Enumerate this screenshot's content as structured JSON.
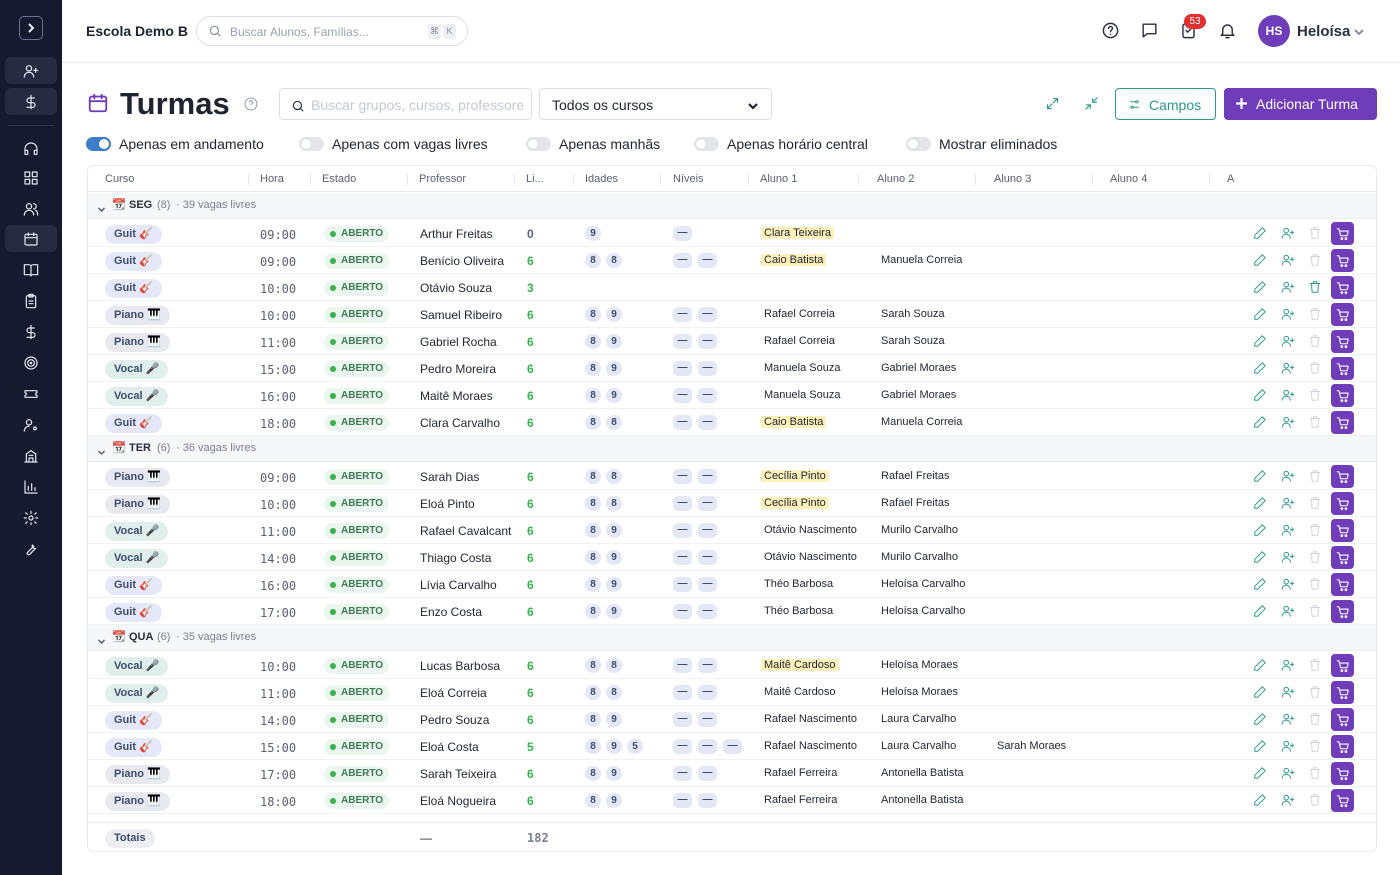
{
  "app": {
    "school": "Escola Demo B",
    "search_placeholder": "Buscar Alunos, Famílias...",
    "kbd1": "⌘",
    "kbd2": "K",
    "notif_count": "53",
    "user_initials": "HS",
    "user_name": "Heloísa"
  },
  "colors": {
    "brand": "#6f3dba",
    "accent": "#2b9a86",
    "sidebar": "#161a2e",
    "open": "#37b24d"
  },
  "page": {
    "title": "Turmas",
    "search_placeholder": "Buscar grupos, cursos, professores...",
    "course_filter": "Todos os cursos",
    "campos_label": "Campos",
    "add_label": "Adicionar Turma"
  },
  "toggles": [
    {
      "label": "Apenas em andamento",
      "on": true
    },
    {
      "label": "Apenas com vagas livres",
      "on": false
    },
    {
      "label": "Apenas manhãs",
      "on": false
    },
    {
      "label": "Apenas horário central",
      "on": false
    },
    {
      "label": "Mostrar eliminados",
      "on": false
    }
  ],
  "columns": [
    "Curso",
    "Hora",
    "Estado",
    "Professor",
    "Li...",
    "Idades",
    "Níveis",
    "Aluno 1",
    "Aluno 2",
    "Aluno 3",
    "Aluno 4",
    "A"
  ],
  "groups": [
    {
      "day": "SEG",
      "count": "(8)",
      "info": "· 39 vagas livres",
      "rows": [
        {
          "course": "Guit 🎸",
          "type": "guit",
          "hora": "09:00",
          "estado": "ABERTO",
          "prof": "Arthur Freitas",
          "livres": "0",
          "idades": [
            "9"
          ],
          "niveis": 1,
          "a1": "Clara Teixeira",
          "a1hl": true,
          "a2": "",
          "a3": "",
          "trash": false
        },
        {
          "course": "Guit 🎸",
          "type": "guit",
          "hora": "09:00",
          "estado": "ABERTO",
          "prof": "Benício Oliveira",
          "livres": "6",
          "idades": [
            "8",
            "8"
          ],
          "niveis": 2,
          "a1": "Caio Batista",
          "a1hl": true,
          "a2": "Manuela Correia",
          "a3": "",
          "trash": false
        },
        {
          "course": "Guit 🎸",
          "type": "guit",
          "hora": "10:00",
          "estado": "ABERTO",
          "prof": "Otávio Souza",
          "livres": "3",
          "idades": [],
          "niveis": 0,
          "a1": "",
          "a1hl": false,
          "a2": "",
          "a3": "",
          "trash": true
        },
        {
          "course": "Piano 🎹",
          "type": "piano",
          "hora": "10:00",
          "estado": "ABERTO",
          "prof": "Samuel Ribeiro",
          "livres": "6",
          "idades": [
            "8",
            "9"
          ],
          "niveis": 2,
          "a1": "Rafael Correia",
          "a1hl": false,
          "a2": "Sarah Souza",
          "a3": "",
          "trash": false
        },
        {
          "course": "Piano 🎹",
          "type": "piano",
          "hora": "11:00",
          "estado": "ABERTO",
          "prof": "Gabriel Rocha",
          "livres": "6",
          "idades": [
            "8",
            "9"
          ],
          "niveis": 2,
          "a1": "Rafael Correia",
          "a1hl": false,
          "a2": "Sarah Souza",
          "a3": "",
          "trash": false
        },
        {
          "course": "Vocal 🎤",
          "type": "vocal",
          "hora": "15:00",
          "estado": "ABERTO",
          "prof": "Pedro Moreira",
          "livres": "6",
          "idades": [
            "8",
            "9"
          ],
          "niveis": 2,
          "a1": "Manuela Souza",
          "a1hl": false,
          "a2": "Gabriel Moraes",
          "a3": "",
          "trash": false
        },
        {
          "course": "Vocal 🎤",
          "type": "vocal",
          "hora": "16:00",
          "estado": "ABERTO",
          "prof": "Maitê Moraes",
          "livres": "6",
          "idades": [
            "8",
            "9"
          ],
          "niveis": 2,
          "a1": "Manuela Souza",
          "a1hl": false,
          "a2": "Gabriel Moraes",
          "a3": "",
          "trash": false
        },
        {
          "course": "Guit 🎸",
          "type": "guit",
          "hora": "18:00",
          "estado": "ABERTO",
          "prof": "Clara Carvalho",
          "livres": "6",
          "idades": [
            "8",
            "8"
          ],
          "niveis": 2,
          "a1": "Caio Batista",
          "a1hl": true,
          "a2": "Manuela Correia",
          "a3": "",
          "trash": false
        }
      ]
    },
    {
      "day": "TER",
      "count": "(6)",
      "info": "· 36 vagas livres",
      "rows": [
        {
          "course": "Piano 🎹",
          "type": "piano",
          "hora": "09:00",
          "estado": "ABERTO",
          "prof": "Sarah Dias",
          "livres": "6",
          "idades": [
            "8",
            "8"
          ],
          "niveis": 2,
          "a1": "Cecília Pinto",
          "a1hl": true,
          "a2": "Rafael Freitas",
          "a3": "",
          "trash": false
        },
        {
          "course": "Piano 🎹",
          "type": "piano",
          "hora": "10:00",
          "estado": "ABERTO",
          "prof": "Eloá Pinto",
          "livres": "6",
          "idades": [
            "8",
            "8"
          ],
          "niveis": 2,
          "a1": "Cecília Pinto",
          "a1hl": true,
          "a2": "Rafael Freitas",
          "a3": "",
          "trash": false
        },
        {
          "course": "Vocal 🎤",
          "type": "vocal",
          "hora": "11:00",
          "estado": "ABERTO",
          "prof": "Rafael Cavalcanti",
          "livres": "6",
          "idades": [
            "8",
            "9"
          ],
          "niveis": 2,
          "a1": "Otávio Nascimento",
          "a1hl": false,
          "a2": "Murilo Carvalho",
          "a3": "",
          "trash": false
        },
        {
          "course": "Vocal 🎤",
          "type": "vocal",
          "hora": "14:00",
          "estado": "ABERTO",
          "prof": "Thiago Costa",
          "livres": "6",
          "idades": [
            "8",
            "9"
          ],
          "niveis": 2,
          "a1": "Otávio Nascimento",
          "a1hl": false,
          "a2": "Murilo Carvalho",
          "a3": "",
          "trash": false
        },
        {
          "course": "Guit 🎸",
          "type": "guit",
          "hora": "16:00",
          "estado": "ABERTO",
          "prof": "Lívia Carvalho",
          "livres": "6",
          "idades": [
            "8",
            "9"
          ],
          "niveis": 2,
          "a1": "Théo Barbosa",
          "a1hl": false,
          "a2": "Heloísa Carvalho",
          "a3": "",
          "trash": false
        },
        {
          "course": "Guit 🎸",
          "type": "guit",
          "hora": "17:00",
          "estado": "ABERTO",
          "prof": "Enzo Costa",
          "livres": "6",
          "idades": [
            "8",
            "9"
          ],
          "niveis": 2,
          "a1": "Théo Barbosa",
          "a1hl": false,
          "a2": "Heloísa Carvalho",
          "a3": "",
          "trash": false
        }
      ]
    },
    {
      "day": "QUA",
      "count": "(6)",
      "info": "· 35 vagas livres",
      "rows": [
        {
          "course": "Vocal 🎤",
          "type": "vocal",
          "hora": "10:00",
          "estado": "ABERTO",
          "prof": "Lucas Barbosa",
          "livres": "6",
          "idades": [
            "8",
            "8"
          ],
          "niveis": 2,
          "a1": "Maitê Cardoso",
          "a1hl": true,
          "a2": "Heloísa Moraes",
          "a3": "",
          "trash": false
        },
        {
          "course": "Vocal 🎤",
          "type": "vocal",
          "hora": "11:00",
          "estado": "ABERTO",
          "prof": "Eloá Correia",
          "livres": "6",
          "idades": [
            "8",
            "8"
          ],
          "niveis": 2,
          "a1": "Maitê Cardoso",
          "a1hl": false,
          "a2": "Heloísa Moraes",
          "a3": "",
          "trash": false
        },
        {
          "course": "Guit 🎸",
          "type": "guit",
          "hora": "14:00",
          "estado": "ABERTO",
          "prof": "Pedro Souza",
          "livres": "6",
          "idades": [
            "8",
            "9"
          ],
          "niveis": 2,
          "a1": "Rafael Nascimento",
          "a1hl": false,
          "a2": "Laura Carvalho",
          "a3": "",
          "trash": false
        },
        {
          "course": "Guit 🎸",
          "type": "guit",
          "hora": "15:00",
          "estado": "ABERTO",
          "prof": "Eloá Costa",
          "livres": "5",
          "idades": [
            "8",
            "9",
            "5"
          ],
          "niveis": 3,
          "a1": "Rafael Nascimento",
          "a1hl": false,
          "a2": "Laura Carvalho",
          "a3": "Sarah Moraes",
          "trash": false
        },
        {
          "course": "Piano 🎹",
          "type": "piano",
          "hora": "17:00",
          "estado": "ABERTO",
          "prof": "Sarah Teixeira",
          "livres": "6",
          "idades": [
            "8",
            "9"
          ],
          "niveis": 2,
          "a1": "Rafael Ferreira",
          "a1hl": false,
          "a2": "Antonella Batista",
          "a3": "",
          "trash": false
        },
        {
          "course": "Piano 🎹",
          "type": "piano",
          "hora": "18:00",
          "estado": "ABERTO",
          "prof": "Eloá Nogueira",
          "livres": "6",
          "idades": [
            "8",
            "9"
          ],
          "niveis": 2,
          "a1": "Rafael Ferreira",
          "a1hl": false,
          "a2": "Antonella Batista",
          "a3": "",
          "trash": false
        }
      ]
    }
  ],
  "totals": {
    "label": "Totais",
    "dash": "—",
    "sum": "182"
  },
  "nivel_placeholder": "—",
  "calendar_emoji": "📆"
}
